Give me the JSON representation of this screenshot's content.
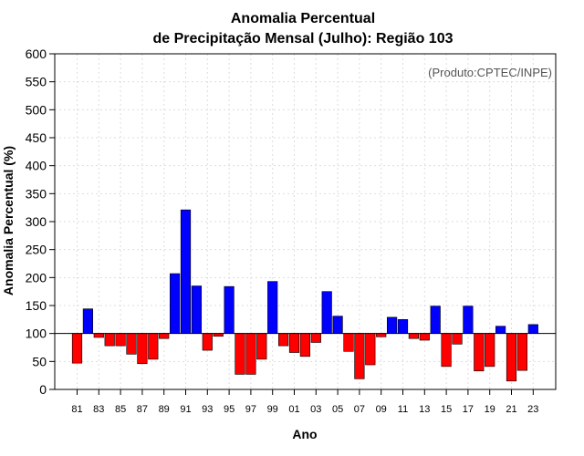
{
  "chart_data": {
    "type": "bar",
    "title_line1": "Anomalia Percentual",
    "title_line2": "de Precipitação Mensal (Julho): Região 103",
    "xlabel": "Ano",
    "ylabel": "Anomalia Percentual (%)",
    "credit": "(Produto:CPTEC/INPE)",
    "baseline": 100,
    "ylim": [
      0,
      600
    ],
    "yticks": [
      0,
      50,
      100,
      150,
      200,
      250,
      300,
      350,
      400,
      450,
      500,
      550,
      600
    ],
    "categories": [
      "81",
      "82",
      "83",
      "84",
      "85",
      "86",
      "87",
      "88",
      "89",
      "90",
      "91",
      "92",
      "93",
      "94",
      "95",
      "96",
      "97",
      "98",
      "99",
      "00",
      "01",
      "02",
      "03",
      "04",
      "05",
      "06",
      "07",
      "08",
      "09",
      "10",
      "11",
      "12",
      "13",
      "14",
      "15",
      "16",
      "17",
      "18",
      "19",
      "20",
      "21",
      "22",
      "23"
    ],
    "tick_labels": [
      "81",
      "83",
      "85",
      "87",
      "89",
      "91",
      "93",
      "95",
      "97",
      "99",
      "01",
      "03",
      "05",
      "07",
      "09",
      "11",
      "13",
      "15",
      "17",
      "19",
      "21",
      "23"
    ],
    "values": [
      47,
      144,
      93,
      78,
      78,
      63,
      46,
      54,
      91,
      207,
      321,
      185,
      70,
      95,
      184,
      27,
      27,
      54,
      193,
      78,
      66,
      59,
      84,
      175,
      131,
      68,
      19,
      44,
      94,
      129,
      125,
      91,
      88,
      149,
      41,
      81,
      149,
      33,
      41,
      113,
      15,
      34,
      116
    ],
    "colors": {
      "above": "#0000ff",
      "below": "#ff0000"
    }
  }
}
